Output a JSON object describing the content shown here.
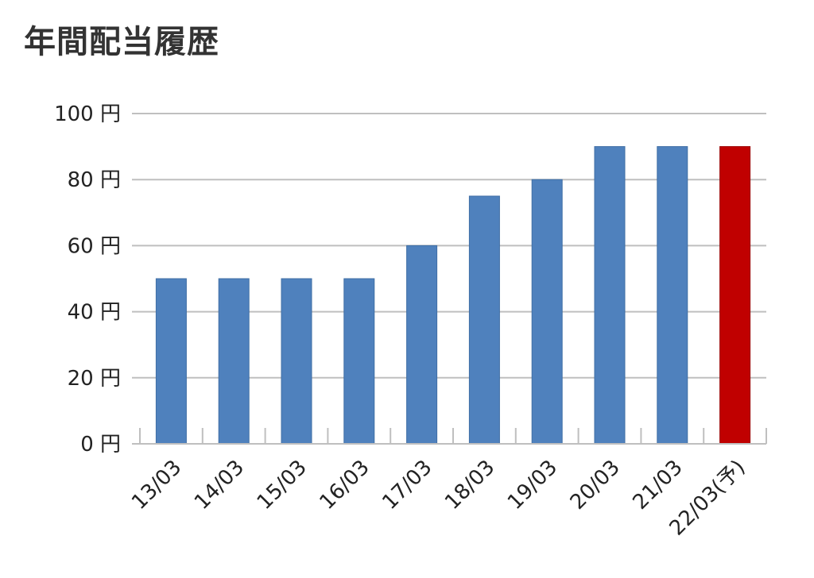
{
  "page": {
    "title": "年間配当履歴"
  },
  "chart_data": {
    "type": "bar",
    "title": "",
    "xlabel": "",
    "ylabel": "",
    "categories": [
      "13/03",
      "14/03",
      "15/03",
      "16/03",
      "17/03",
      "18/03",
      "19/03",
      "20/03",
      "21/03",
      "22/03(予)"
    ],
    "values": [
      50,
      50,
      50,
      50,
      60,
      75,
      80,
      90,
      90,
      90
    ],
    "forecast_flags": [
      false,
      false,
      false,
      false,
      false,
      false,
      false,
      false,
      false,
      true
    ],
    "ylim": [
      0,
      100
    ],
    "yticks": [
      0,
      20,
      40,
      60,
      80,
      100
    ],
    "y_tick_unit": "円",
    "grid": true,
    "colors": {
      "actual": "#4f81bd",
      "forecast": "#c00000",
      "grid": "#bfbfbf"
    }
  }
}
